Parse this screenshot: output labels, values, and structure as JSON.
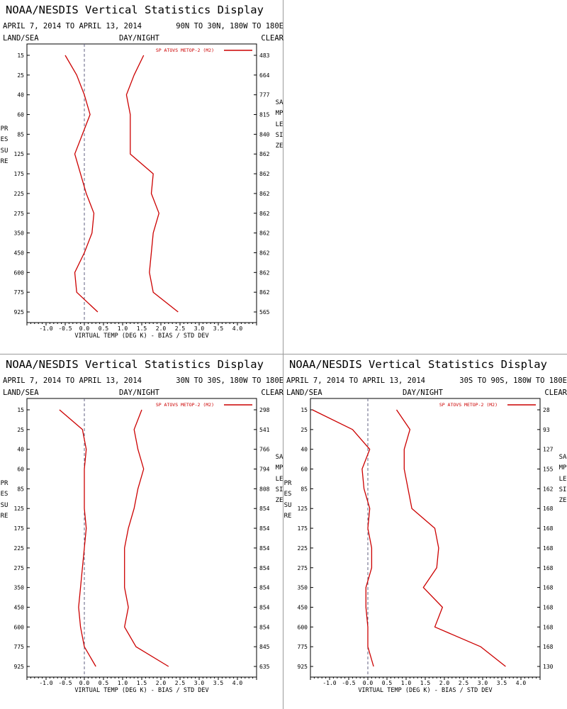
{
  "page": {
    "title": "NOAA/NESDIS Vertical Statistics Display",
    "dates": "APRIL 7, 2014 TO APRIL 13, 2014",
    "land_sea": "LAND/SEA",
    "day_night": "DAY/NIGHT",
    "clear": "CLEAR",
    "pressure_letters": "PRESSURE",
    "sample_size_letters": "SAMPLESIZE",
    "line_color": "#cc0000",
    "zero_line_color": "#606080"
  },
  "chart_data": [
    {
      "type": "line",
      "region": "90N TO 30N, 180W TO 180E",
      "xlabel": "VIRTUAL TEMP (DEG K) - BIAS / STD DEV",
      "xlim": [
        -1.5,
        4.5
      ],
      "xticks": [
        "-1.0",
        "-0.5",
        "0.0",
        "0.5",
        "1.0",
        "1.5",
        "2.0",
        "2.5",
        "3.0",
        "3.5",
        "4.0"
      ],
      "pressure_levels": [
        15,
        25,
        40,
        60,
        85,
        125,
        175,
        225,
        275,
        350,
        450,
        600,
        775,
        925
      ],
      "sample_sizes": [
        "483",
        "664",
        "777",
        "815",
        "840",
        "862",
        "862",
        "862",
        "862",
        "862",
        "862",
        "862",
        "862",
        "565"
      ],
      "legend": "SP ATOVS METOP-2 (M2)",
      "series": [
        {
          "role": "bias",
          "values": [
            -0.5,
            -0.2,
            0.0,
            0.15,
            -0.05,
            -0.25,
            -0.1,
            0.05,
            0.25,
            0.2,
            0.0,
            -0.25,
            -0.2,
            0.35
          ]
        },
        {
          "role": "std_dev",
          "values": [
            1.55,
            1.3,
            1.1,
            1.2,
            1.2,
            1.2,
            1.8,
            1.75,
            1.95,
            1.8,
            1.75,
            1.7,
            1.8,
            2.45
          ]
        }
      ]
    },
    {
      "type": "line",
      "region": "30N TO 30S, 180W TO 180E",
      "xlabel": "VIRTUAL TEMP (DEG K) - BIAS / STD DEV",
      "xlim": [
        -1.5,
        4.5
      ],
      "xticks": [
        "-1.0",
        "-0.5",
        "0.0",
        "0.5",
        "1.0",
        "1.5",
        "2.0",
        "2.5",
        "3.0",
        "3.5",
        "4.0"
      ],
      "pressure_levels": [
        15,
        25,
        40,
        60,
        85,
        125,
        175,
        225,
        275,
        350,
        450,
        600,
        775,
        925
      ],
      "sample_sizes": [
        "298",
        "541",
        "766",
        "794",
        "808",
        "854",
        "854",
        "854",
        "854",
        "854",
        "854",
        "854",
        "845",
        "635"
      ],
      "legend": "SP ATOVS METOP-2 (M2)",
      "series": [
        {
          "role": "bias",
          "values": [
            -0.65,
            -0.05,
            0.05,
            0.0,
            0.0,
            0.0,
            0.05,
            0.0,
            -0.05,
            -0.1,
            -0.15,
            -0.1,
            0.0,
            0.3
          ]
        },
        {
          "role": "std_dev",
          "values": [
            1.5,
            1.3,
            1.4,
            1.55,
            1.4,
            1.3,
            1.15,
            1.05,
            1.05,
            1.05,
            1.15,
            1.05,
            1.35,
            2.2
          ]
        }
      ]
    },
    {
      "type": "line",
      "region": "30S TO 90S, 180W TO 180E",
      "xlabel": "VIRTUAL TEMP (DEG K) - BIAS / STD DEV",
      "xlim": [
        -1.5,
        4.5
      ],
      "xticks": [
        "-1.0",
        "-0.5",
        "0.0",
        "0.5",
        "1.0",
        "1.5",
        "2.0",
        "2.5",
        "3.0",
        "3.5",
        "4.0"
      ],
      "pressure_levels": [
        15,
        25,
        40,
        60,
        85,
        125,
        175,
        225,
        275,
        350,
        450,
        600,
        775,
        925
      ],
      "sample_sizes": [
        "28",
        "93",
        "127",
        "155",
        "162",
        "168",
        "168",
        "168",
        "168",
        "168",
        "168",
        "168",
        "168",
        "130"
      ],
      "legend": "SP ATOVS METOP-2 (M2)",
      "series": [
        {
          "role": "bias",
          "values": [
            -1.45,
            -0.4,
            0.05,
            -0.15,
            -0.1,
            0.05,
            0.0,
            0.1,
            0.1,
            -0.05,
            -0.05,
            0.0,
            0.0,
            0.15
          ]
        },
        {
          "role": "std_dev",
          "values": [
            0.75,
            1.1,
            0.95,
            0.95,
            1.05,
            1.15,
            1.75,
            1.85,
            1.8,
            1.45,
            1.95,
            1.75,
            2.95,
            3.6
          ]
        }
      ]
    }
  ]
}
